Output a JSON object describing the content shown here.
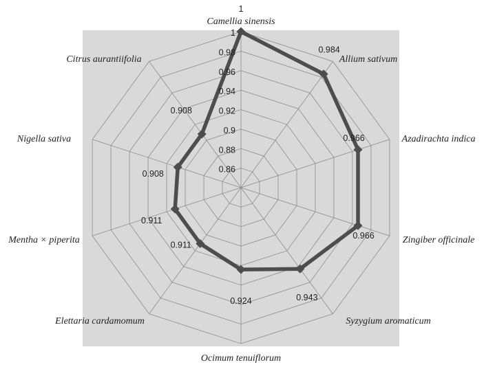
{
  "chart_data": {
    "type": "radar",
    "top_label": "1",
    "categories": [
      "Camellia sinensis",
      "Allium sativum",
      "Azadirachta indica",
      "Zingiber officinale",
      "Syzygium aromaticum",
      "Ocimum tenuiflorum",
      "Elettaria cardamomum",
      "Mentha × piperita",
      "Nigella sativa",
      "Citrus aurantiifolia"
    ],
    "values": [
      1,
      0.984,
      0.966,
      0.966,
      0.943,
      0.924,
      0.911,
      0.911,
      0.908,
      0.908
    ],
    "data_labels": [
      "",
      "0.984",
      "0.966",
      "0.966",
      "0.943",
      "0.924",
      "0.911",
      "0.911",
      "0.908",
      "0.908"
    ],
    "r_ticks": [
      "0.86",
      "0.88",
      "0.9",
      "0.92",
      "0.94",
      "0.96",
      "0.98",
      "1"
    ],
    "rlim": [
      0.84,
      1.0
    ],
    "grid": true,
    "colors": {
      "plot_area": "#d9d9d9",
      "grid": "#8c8c8c",
      "series": "#4d4d4d"
    }
  }
}
